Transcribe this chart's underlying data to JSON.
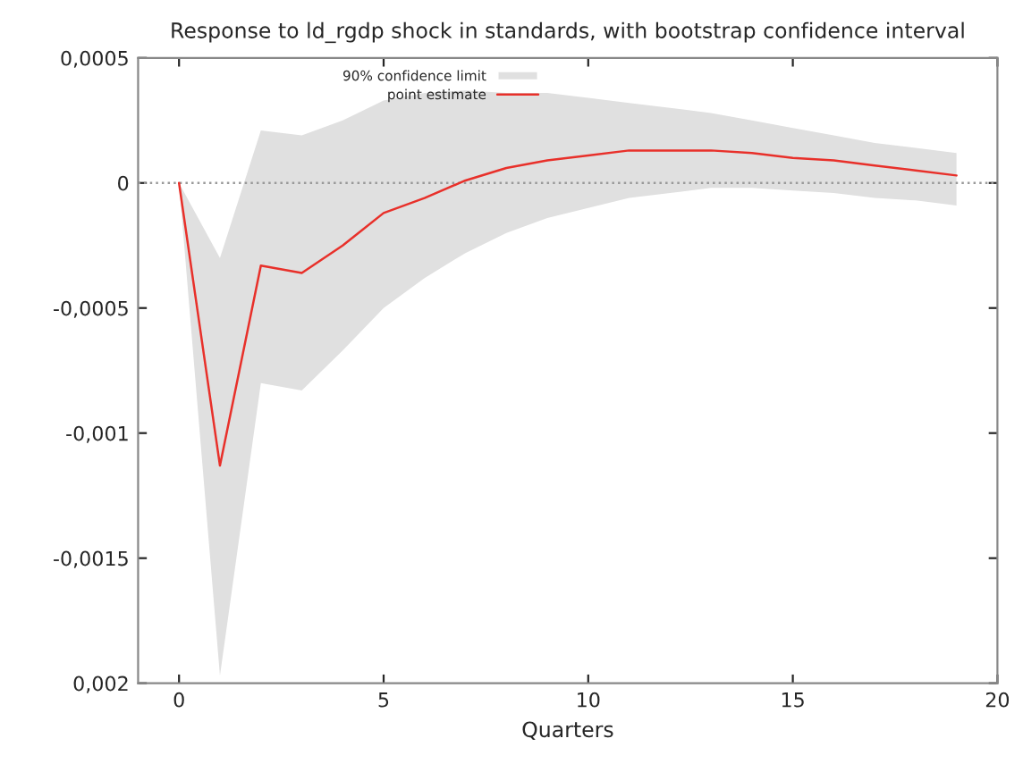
{
  "chart_data": {
    "type": "line",
    "title": "Response to ld_rgdp shock in standards, with bootstrap confidence interval",
    "xlabel": "Quarters",
    "x": [
      0,
      1,
      2,
      3,
      4,
      5,
      6,
      7,
      8,
      9,
      10,
      11,
      12,
      13,
      14,
      15,
      16,
      17,
      18,
      19
    ],
    "series": [
      {
        "name": "point estimate",
        "color": "#e8302a",
        "values": [
          0,
          -0.00113,
          -0.00033,
          -0.00036,
          -0.00025,
          -0.00012,
          -6e-05,
          1e-05,
          6e-05,
          9e-05,
          0.00011,
          0.00013,
          0.00013,
          0.00013,
          0.00012,
          0.0001,
          9e-05,
          7e-05,
          5e-05,
          3e-05
        ],
        "lower": [
          0,
          -0.00197,
          -0.0008,
          -0.00083,
          -0.00067,
          -0.0005,
          -0.00038,
          -0.00028,
          -0.0002,
          -0.00014,
          -0.0001,
          -6e-05,
          -4e-05,
          -2e-05,
          -2e-05,
          -3e-05,
          -4e-05,
          -6e-05,
          -7e-05,
          -9e-05
        ],
        "upper": [
          0,
          -0.0003,
          0.00021,
          0.00019,
          0.00025,
          0.00033,
          0.00036,
          0.00037,
          0.00036,
          0.00036,
          0.00034,
          0.00032,
          0.0003,
          0.00028,
          0.00025,
          0.00022,
          0.00019,
          0.00016,
          0.00014,
          0.00012
        ]
      }
    ],
    "annotations": [
      "90% confidence limit"
    ],
    "xlim": [
      -1,
      20
    ],
    "xticks": [
      0,
      5,
      10,
      15,
      20
    ],
    "ylim": [
      -0.002,
      0.0005
    ],
    "yticks": [
      {
        "value": -0.002,
        "label": "0,002"
      },
      {
        "value": -0.0015,
        "label": "-0,0015"
      },
      {
        "value": -0.001,
        "label": "-0,001"
      },
      {
        "value": -0.0005,
        "label": "-0,0005"
      },
      {
        "value": 0,
        "label": "0"
      },
      {
        "value": 0.0005,
        "label": "0,0005"
      }
    ],
    "ref_lines": [
      {
        "axis": "y",
        "value": 0,
        "color": "#999999",
        "line_style": "dotted"
      }
    ],
    "legend": "top"
  }
}
